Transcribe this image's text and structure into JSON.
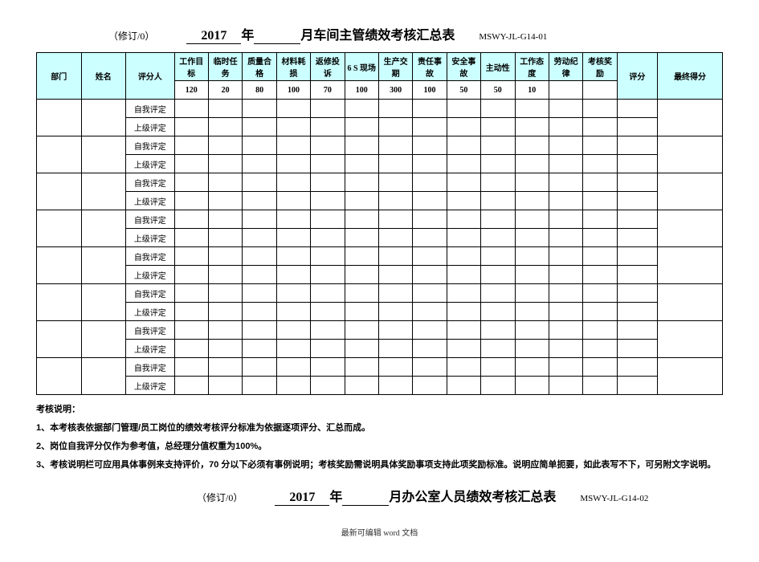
{
  "header1": {
    "prefix": "（修订/0）",
    "year": "2017",
    "year_label": "年",
    "month_label": "月车间主管绩效考核汇总表",
    "code": "MSWY-JL-G14-01"
  },
  "table": {
    "headers": {
      "dept": "部门",
      "name": "姓名",
      "rater": "评分人",
      "metrics": [
        "工作目标",
        "临时任务",
        "质量合格",
        "材料耗损",
        "返修投诉",
        "6 S 现场",
        "生产交期",
        "责任事故",
        "安全事故",
        "主动性",
        "工作态度",
        "劳动纪律",
        "考核奖励"
      ],
      "score": "评分",
      "final": "最终得分"
    },
    "weights": [
      "120",
      "20",
      "80",
      "100",
      "70",
      "100",
      "300",
      "100",
      "50",
      "50",
      "10",
      "",
      "",
      ""
    ],
    "row_labels": {
      "self": "自我评定",
      "superior": "上级评定"
    },
    "group_count": 8
  },
  "notes": {
    "title": "考核说明：",
    "lines": [
      "1、本考核表依据部门管理/员工岗位的绩效考核评分标准为依据逐项评分、汇总而成。",
      "2、岗位自我评分仅作为参考值，总经理分值权重为100%。",
      "3、考核说明栏可应用具体事例来支持评价，70 分以下必须有事例说明；考核奖励需说明具体奖励事项支持此项奖励标准。说明应简单扼要，如此表写不下，可另附文字说明。"
    ]
  },
  "header2": {
    "prefix": "（修订/0）",
    "year": "2017",
    "year_label": "年",
    "month_label": "月办公室人员绩效考核汇总表",
    "code": "MSWY-JL-G14-02"
  },
  "footer": "最新可编辑 word 文档"
}
